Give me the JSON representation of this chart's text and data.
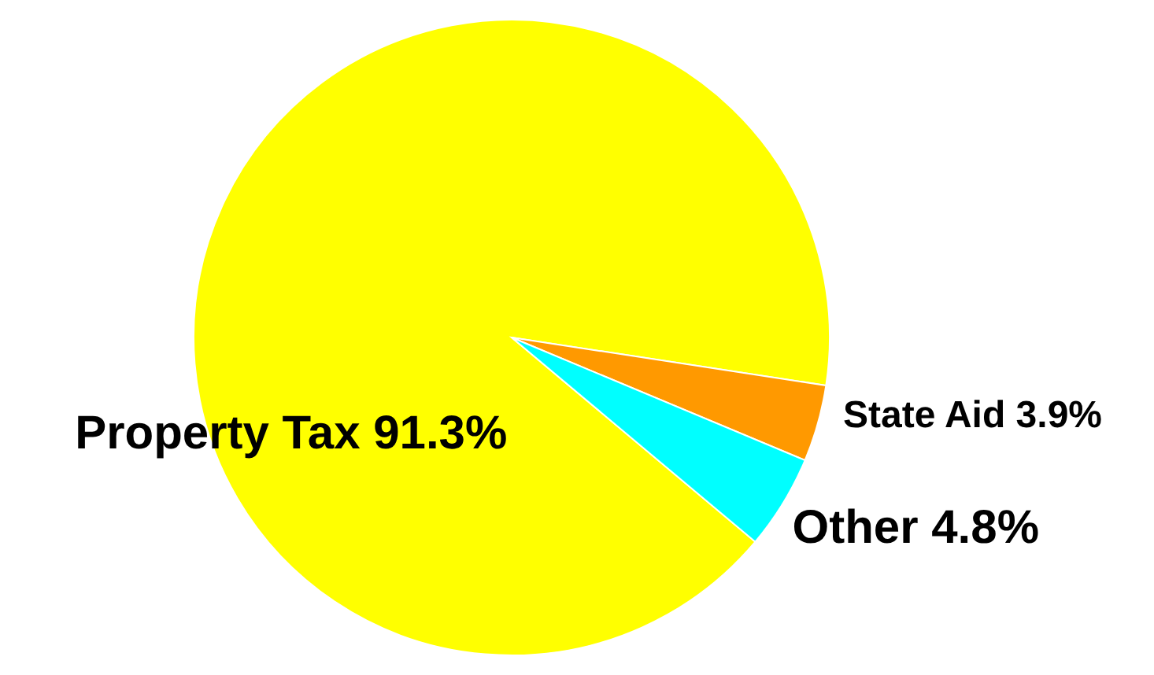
{
  "chart_data": {
    "type": "pie",
    "categories": [
      "Property Tax",
      "State Aid",
      "Other"
    ],
    "values": [
      91.3,
      3.9,
      4.8
    ],
    "value_labels": [
      "91.3%",
      "3.9%",
      "4.8%"
    ],
    "colors": [
      "#ffff00",
      "#ff9900",
      "#00ffff"
    ]
  }
}
